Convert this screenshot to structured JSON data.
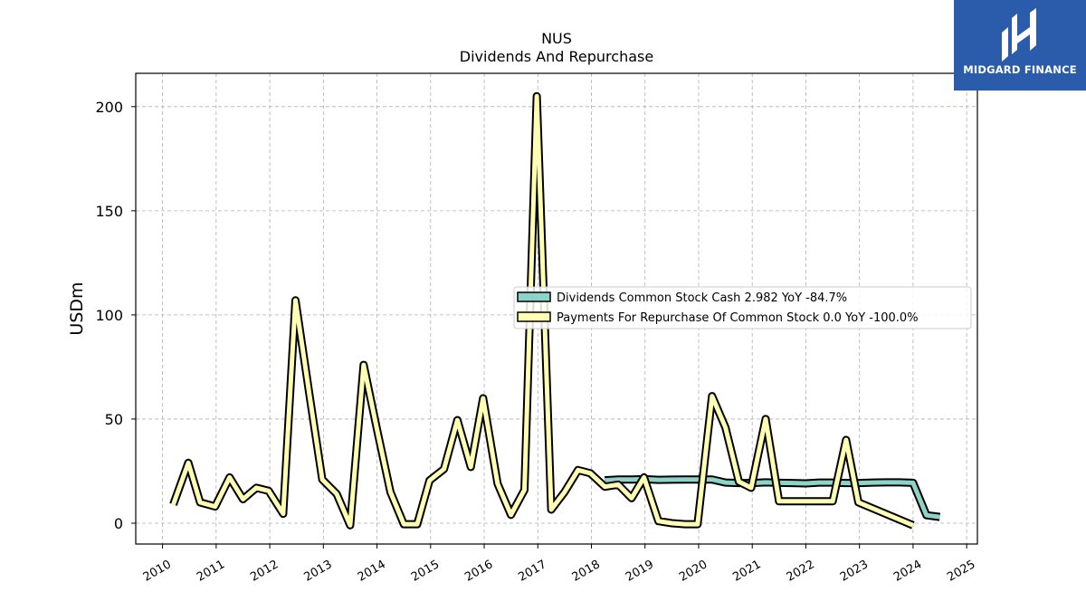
{
  "chart_data": {
    "type": "line",
    "title": "NUS",
    "subtitle": "Dividends And Repurchase",
    "ylabel": "USDm",
    "xlabel": "",
    "xlim": [
      2009.5,
      2025.2
    ],
    "ylim": [
      -10,
      216
    ],
    "yticks": [
      0,
      50,
      100,
      150,
      200
    ],
    "xticks": [
      "2010",
      "2011",
      "2012",
      "2013",
      "2014",
      "2015",
      "2016",
      "2017",
      "2018",
      "2019",
      "2020",
      "2021",
      "2022",
      "2023",
      "2024",
      "2025"
    ],
    "grid": true,
    "legend_position": "center-right",
    "series": [
      {
        "name": "Dividends Common Stock Cash  2.982 YoY -84.7%",
        "color": "#8dd3c7",
        "points": [
          [
            2018.25,
            20.6
          ],
          [
            2018.5,
            21.0
          ],
          [
            2018.75,
            21.0
          ],
          [
            2019.0,
            21.1
          ],
          [
            2019.25,
            20.8
          ],
          [
            2019.5,
            20.9
          ],
          [
            2019.75,
            21.0
          ],
          [
            2020.0,
            21.0
          ],
          [
            2020.25,
            21.0
          ],
          [
            2020.5,
            19.5
          ],
          [
            2020.75,
            19.3
          ],
          [
            2021.0,
            19.3
          ],
          [
            2021.25,
            19.6
          ],
          [
            2021.5,
            19.4
          ],
          [
            2021.75,
            19.3
          ],
          [
            2022.0,
            19.1
          ],
          [
            2022.25,
            19.5
          ],
          [
            2022.5,
            19.5
          ],
          [
            2022.75,
            19.3
          ],
          [
            2023.0,
            19.3
          ],
          [
            2023.25,
            19.5
          ],
          [
            2023.5,
            19.6
          ],
          [
            2023.75,
            19.6
          ],
          [
            2024.0,
            19.4
          ],
          [
            2024.25,
            3.8
          ],
          [
            2024.5,
            3.0
          ]
        ]
      },
      {
        "name": "Payments For Repurchase Of Common Stock  0.0 YoY -100.0%",
        "color": "#ffffb3",
        "points": [
          [
            2010.2,
            9
          ],
          [
            2010.48,
            29
          ],
          [
            2010.7,
            10
          ],
          [
            2010.98,
            8
          ],
          [
            2011.25,
            22
          ],
          [
            2011.5,
            11.5
          ],
          [
            2011.75,
            17
          ],
          [
            2011.98,
            15.5
          ],
          [
            2012.25,
            4.5
          ],
          [
            2012.48,
            107
          ],
          [
            2012.75,
            60
          ],
          [
            2012.98,
            21
          ],
          [
            2013.25,
            14
          ],
          [
            2013.5,
            -1
          ],
          [
            2013.75,
            76
          ],
          [
            2014.0,
            45
          ],
          [
            2014.25,
            15
          ],
          [
            2014.5,
            -0.5
          ],
          [
            2014.75,
            -0.5
          ],
          [
            2014.98,
            20.5
          ],
          [
            2015.25,
            26
          ],
          [
            2015.5,
            49.5
          ],
          [
            2015.75,
            27
          ],
          [
            2015.98,
            60
          ],
          [
            2016.25,
            19
          ],
          [
            2016.5,
            4
          ],
          [
            2016.75,
            16
          ],
          [
            2016.98,
            205
          ],
          [
            2017.25,
            6.5
          ],
          [
            2017.5,
            15
          ],
          [
            2017.75,
            25.5
          ],
          [
            2017.98,
            24
          ],
          [
            2018.25,
            17.5
          ],
          [
            2018.5,
            18.5
          ],
          [
            2018.75,
            12
          ],
          [
            2018.98,
            22
          ],
          [
            2019.25,
            1
          ],
          [
            2019.5,
            0
          ],
          [
            2019.75,
            -0.5
          ],
          [
            2019.98,
            -0.5
          ],
          [
            2020.25,
            61
          ],
          [
            2020.5,
            46
          ],
          [
            2020.75,
            20
          ],
          [
            2020.98,
            17
          ],
          [
            2021.25,
            50
          ],
          [
            2021.5,
            10.5
          ],
          [
            2021.75,
            10.5
          ],
          [
            2021.98,
            10.5
          ],
          [
            2022.25,
            10.5
          ],
          [
            2022.5,
            10.5
          ],
          [
            2022.75,
            40
          ],
          [
            2022.98,
            10
          ],
          [
            2024.0,
            -1
          ]
        ]
      }
    ]
  },
  "logo": {
    "text": "MIDGARD FINANCE",
    "color": "#2b5cab",
    "icon": "mh-monogram-icon"
  }
}
